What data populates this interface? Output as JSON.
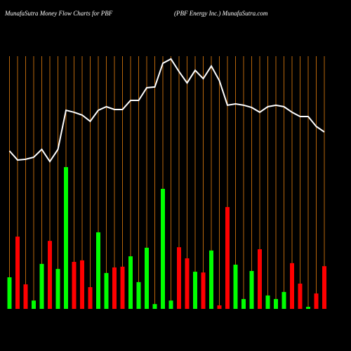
{
  "chart_data": {
    "type": "bar",
    "title": "MunafaSutra  Money Flow  Charts for PBF",
    "subtitle": "(PBF Energy Inc.) MunafaSutra.com",
    "ylim": [
      0,
      100
    ],
    "bars": {
      "values": [
        12.5,
        28.6,
        9.7,
        3.3,
        17.8,
        26.9,
        15.8,
        56.1,
        18.6,
        19.2,
        8.6,
        30.3,
        14.2,
        16.4,
        16.7,
        20.8,
        10.6,
        24.2,
        1.9,
        47.5,
        3.3,
        24.4,
        20,
        14.7,
        14.4,
        23.1,
        1.4,
        40.3,
        17.5,
        3.9,
        15,
        23.6,
        5.3,
        3.9,
        6.7,
        18.1,
        10,
        0.8,
        6.1,
        16.9
      ],
      "colors": [
        "#00ff00",
        "#ff0000",
        "#ff0000",
        "#00ff00",
        "#00ff00",
        "#ff0000",
        "#00ff00",
        "#00ff00",
        "#ff0000",
        "#ff0000",
        "#ff0000",
        "#00ff00",
        "#00ff00",
        "#ff0000",
        "#ff0000",
        "#00ff00",
        "#00ff00",
        "#00ff00",
        "#00ff00",
        "#00ff00",
        "#00ff00",
        "#ff0000",
        "#ff0000",
        "#00ff00",
        "#ff0000",
        "#00ff00",
        "#ff0000",
        "#ff0000",
        "#00ff00",
        "#00ff00",
        "#00ff00",
        "#ff0000",
        "#00ff00",
        "#00ff00",
        "#00ff00",
        "#ff0000",
        "#ff0000",
        "#00ff00",
        "#ff0000",
        "#ff0000"
      ]
    },
    "line": {
      "color": "#ffffff",
      "values": [
        62.5,
        58.9,
        59.2,
        60,
        63.1,
        58.3,
        63.1,
        78.6,
        77.8,
        76.7,
        74.2,
        78.6,
        80,
        78.9,
        78.9,
        82.5,
        82.5,
        87.5,
        87.8,
        97.2,
        98.9,
        93.9,
        89.4,
        94.4,
        91.1,
        96.1,
        90.3,
        80.6,
        81.1,
        80.6,
        79.7,
        77.8,
        80,
        80.6,
        80,
        77.8,
        76.1,
        76.1,
        72.2,
        70
      ]
    },
    "grid_color": "#b8660b"
  }
}
